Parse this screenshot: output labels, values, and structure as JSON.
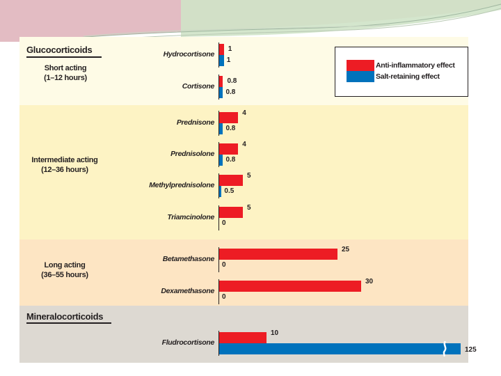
{
  "chart_data": {
    "type": "bar",
    "orientation": "horizontal",
    "series": [
      {
        "name": "Anti-inflammatory effect",
        "color": "#ed1c24",
        "values": [
          1,
          0.8,
          4,
          4,
          5,
          5,
          25,
          30,
          10
        ],
        "labels": [
          "1",
          "0.8",
          "4",
          "4",
          "5",
          "5",
          "25",
          "30",
          "10"
        ]
      },
      {
        "name": "Salt-retaining effect",
        "color": "#0072bc",
        "values": [
          1,
          0.8,
          0.8,
          0.8,
          0.5,
          0,
          0,
          0,
          125
        ],
        "labels": [
          "1",
          "0.8",
          "0.8",
          "0.8",
          "0.5",
          "0",
          "0",
          "0",
          "125"
        ]
      }
    ],
    "categories": [
      "Hydrocortisone",
      "Cortisone",
      "Prednisone",
      "Prednisolone",
      "Methylprednisolone",
      "Triamcinolone",
      "Betamethasone",
      "Dexamethasone",
      "Fludrocortisone"
    ],
    "axis_break": "salt-retaining bar of Fludrocortisone is truncated (125)",
    "sections": [
      {
        "title": "Glucocorticoids",
        "groups": [
          {
            "name": "Short acting",
            "duration": "(1–12 hours)"
          }
        ]
      },
      {
        "groups": [
          {
            "name": "Intermediate acting",
            "duration": "(12–36 hours)"
          }
        ]
      },
      {
        "groups": [
          {
            "name": "Long acting",
            "duration": "(36–55 hours)"
          }
        ]
      },
      {
        "title": "Mineralocorticoids"
      }
    ],
    "legend": [
      "Anti-inflammatory effect",
      "Salt-retaining effect"
    ]
  }
}
